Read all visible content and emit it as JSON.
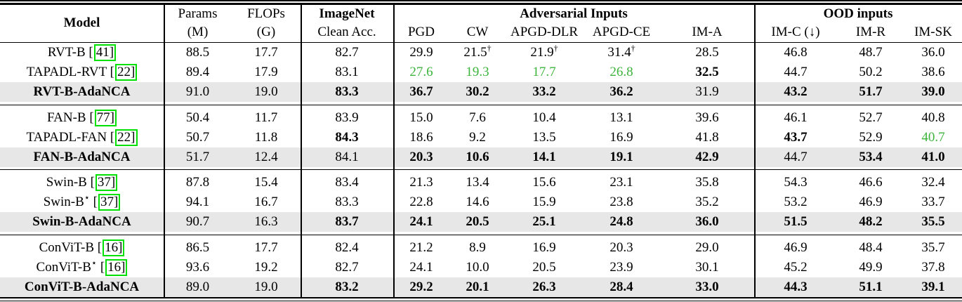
{
  "colors": {
    "green_value": "#3cb43c",
    "cite_border": "#00e000",
    "highlight_bg": "#e7e7e7",
    "rule": "#000000"
  },
  "symbols": {
    "dagger": "†",
    "star": "⋆",
    "bracket_open": "[",
    "bracket_close": "]",
    "down_arrow": "↓"
  },
  "header": {
    "model": "Model",
    "params_l1": "Params",
    "params_l2": "(M)",
    "flops_l1": "FLOPs",
    "flops_l2": "(G)",
    "imagenet_l1": "ImageNet",
    "imagenet_l2": "Clean Acc.",
    "adversarial": "Adversarial Inputs",
    "adv_cols": [
      "PGD",
      "CW",
      "APGD-DLR",
      "APGD-CE",
      "IM-A"
    ],
    "ood": "OOD inputs",
    "ood_cols": [
      "IM-C (↓)",
      "IM-R",
      "IM-SK"
    ]
  },
  "groups": [
    {
      "rows": [
        {
          "model": "RVT-B",
          "cite": "41",
          "cells": [
            {
              "v": "88.5"
            },
            {
              "v": "17.7"
            },
            {
              "v": "82.7"
            },
            {
              "v": "29.9"
            },
            {
              "v": "21.5",
              "sup": "†"
            },
            {
              "v": "21.9",
              "sup": "†"
            },
            {
              "v": "31.4",
              "sup": "†"
            },
            {
              "v": "28.5"
            },
            {
              "v": "46.8"
            },
            {
              "v": "48.7"
            },
            {
              "v": "36.0"
            }
          ]
        },
        {
          "model": "TAPADL-RVT",
          "cite": "22",
          "cells": [
            {
              "v": "89.4"
            },
            {
              "v": "17.9"
            },
            {
              "v": "83.1"
            },
            {
              "v": "27.6",
              "g": true
            },
            {
              "v": "19.3",
              "g": true
            },
            {
              "v": "17.7",
              "g": true
            },
            {
              "v": "26.8",
              "g": true
            },
            {
              "v": "32.5",
              "b": true
            },
            {
              "v": "44.7"
            },
            {
              "v": "50.2"
            },
            {
              "v": "38.6"
            }
          ]
        },
        {
          "model": "RVT-B-AdaNCA",
          "highlight": true,
          "bold_model": true,
          "cells": [
            {
              "v": "91.0"
            },
            {
              "v": "19.0"
            },
            {
              "v": "83.3",
              "b": true
            },
            {
              "v": "36.7",
              "b": true
            },
            {
              "v": "30.2",
              "b": true
            },
            {
              "v": "33.2",
              "b": true
            },
            {
              "v": "36.2",
              "b": true
            },
            {
              "v": "31.9"
            },
            {
              "v": "43.2",
              "b": true
            },
            {
              "v": "51.7",
              "b": true
            },
            {
              "v": "39.0",
              "b": true
            }
          ]
        }
      ]
    },
    {
      "rows": [
        {
          "model": "FAN-B",
          "cite": "77",
          "cells": [
            {
              "v": "50.4"
            },
            {
              "v": "11.7"
            },
            {
              "v": "83.9"
            },
            {
              "v": "15.0"
            },
            {
              "v": "7.6"
            },
            {
              "v": "10.4"
            },
            {
              "v": "13.1"
            },
            {
              "v": "39.6"
            },
            {
              "v": "46.1"
            },
            {
              "v": "52.7"
            },
            {
              "v": "40.8"
            }
          ]
        },
        {
          "model": "TAPADL-FAN",
          "cite": "22",
          "cells": [
            {
              "v": "50.7"
            },
            {
              "v": "11.8"
            },
            {
              "v": "84.3",
              "b": true
            },
            {
              "v": "18.6"
            },
            {
              "v": "9.2"
            },
            {
              "v": "13.5"
            },
            {
              "v": "16.9"
            },
            {
              "v": "41.8"
            },
            {
              "v": "43.7",
              "b": true
            },
            {
              "v": "52.9"
            },
            {
              "v": "40.7",
              "g": true
            }
          ]
        },
        {
          "model": "FAN-B-AdaNCA",
          "highlight": true,
          "bold_model": true,
          "cells": [
            {
              "v": "51.7"
            },
            {
              "v": "12.4"
            },
            {
              "v": "84.1"
            },
            {
              "v": "20.3",
              "b": true
            },
            {
              "v": "10.6",
              "b": true
            },
            {
              "v": "14.1",
              "b": true
            },
            {
              "v": "19.1",
              "b": true
            },
            {
              "v": "42.9",
              "b": true
            },
            {
              "v": "44.7"
            },
            {
              "v": "53.4",
              "b": true
            },
            {
              "v": "41.0",
              "b": true
            }
          ]
        }
      ]
    },
    {
      "rows": [
        {
          "model": "Swin-B",
          "cite": "37",
          "cells": [
            {
              "v": "87.8"
            },
            {
              "v": "15.4"
            },
            {
              "v": "83.4"
            },
            {
              "v": "21.3"
            },
            {
              "v": "13.4"
            },
            {
              "v": "15.6"
            },
            {
              "v": "23.1"
            },
            {
              "v": "35.8"
            },
            {
              "v": "54.3"
            },
            {
              "v": "46.6"
            },
            {
              "v": "32.4"
            }
          ]
        },
        {
          "model": "Swin-B",
          "star": true,
          "cite": "37",
          "cells": [
            {
              "v": "94.1"
            },
            {
              "v": "16.7"
            },
            {
              "v": "83.3"
            },
            {
              "v": "22.8"
            },
            {
              "v": "14.6"
            },
            {
              "v": "15.9"
            },
            {
              "v": "23.8"
            },
            {
              "v": "35.2"
            },
            {
              "v": "53.2"
            },
            {
              "v": "46.9"
            },
            {
              "v": "33.7"
            }
          ]
        },
        {
          "model": "Swin-B-AdaNCA",
          "highlight": true,
          "bold_model": true,
          "cells": [
            {
              "v": "90.7"
            },
            {
              "v": "16.3"
            },
            {
              "v": "83.7",
              "b": true
            },
            {
              "v": "24.1",
              "b": true
            },
            {
              "v": "20.5",
              "b": true
            },
            {
              "v": "25.1",
              "b": true
            },
            {
              "v": "24.8",
              "b": true
            },
            {
              "v": "36.0",
              "b": true
            },
            {
              "v": "51.5",
              "b": true
            },
            {
              "v": "48.2",
              "b": true
            },
            {
              "v": "35.5",
              "b": true
            }
          ]
        }
      ]
    },
    {
      "rows": [
        {
          "model": "ConViT-B",
          "cite": "16",
          "cells": [
            {
              "v": "86.5"
            },
            {
              "v": "17.7"
            },
            {
              "v": "82.4"
            },
            {
              "v": "21.2"
            },
            {
              "v": "8.9"
            },
            {
              "v": "16.9"
            },
            {
              "v": "20.3"
            },
            {
              "v": "29.0"
            },
            {
              "v": "46.9"
            },
            {
              "v": "48.4"
            },
            {
              "v": "35.7"
            }
          ]
        },
        {
          "model": "ConViT-B",
          "star": true,
          "cite": "16",
          "cells": [
            {
              "v": "93.6"
            },
            {
              "v": "19.2"
            },
            {
              "v": "82.7"
            },
            {
              "v": "24.1"
            },
            {
              "v": "10.0"
            },
            {
              "v": "20.5"
            },
            {
              "v": "23.9"
            },
            {
              "v": "30.1"
            },
            {
              "v": "45.2"
            },
            {
              "v": "49.9"
            },
            {
              "v": "37.8"
            }
          ]
        },
        {
          "model": "ConViT-B-AdaNCA",
          "highlight": true,
          "bold_model": true,
          "cells": [
            {
              "v": "89.0"
            },
            {
              "v": "19.0"
            },
            {
              "v": "83.2",
              "b": true
            },
            {
              "v": "29.2",
              "b": true
            },
            {
              "v": "20.1",
              "b": true
            },
            {
              "v": "26.3",
              "b": true
            },
            {
              "v": "28.4",
              "b": true
            },
            {
              "v": "33.0",
              "b": true
            },
            {
              "v": "44.3",
              "b": true
            },
            {
              "v": "51.1",
              "b": true
            },
            {
              "v": "39.1",
              "b": true
            }
          ]
        }
      ]
    }
  ]
}
